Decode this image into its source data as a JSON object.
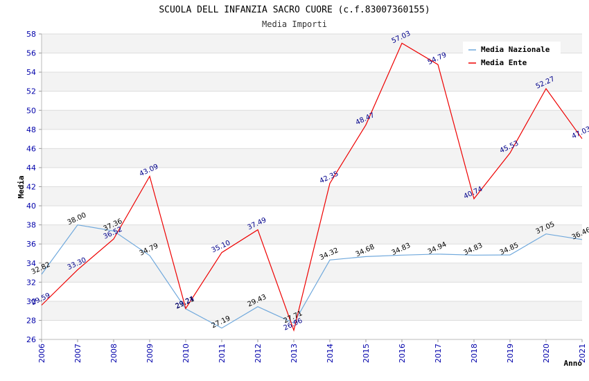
{
  "chart_data": {
    "type": "line",
    "title": "SCUOLA DELL INFANZIA SACRO CUORE (c.f.83007360155)",
    "subtitle": "Media Importi",
    "xlabel": "Anno",
    "ylabel": "Media",
    "ylim": [
      26,
      58
    ],
    "y_ticks": [
      "26",
      "28",
      "30",
      "32",
      "34",
      "36",
      "38",
      "40",
      "42",
      "44",
      "46",
      "48",
      "50",
      "52",
      "54",
      "56",
      "58"
    ],
    "categories": [
      "2006",
      "2007",
      "2008",
      "2009",
      "2010",
      "2011",
      "2012",
      "2013",
      "2014",
      "2015",
      "2016",
      "2017",
      "2018",
      "2019",
      "2020",
      "2021"
    ],
    "legend_position": "top-right",
    "series": [
      {
        "name": "Media Nazionale",
        "color": "#6fa8dc",
        "values": [
          32.82,
          38.0,
          37.36,
          34.79,
          29.21,
          27.19,
          29.43,
          27.71,
          34.32,
          34.68,
          34.83,
          34.94,
          34.83,
          34.85,
          37.05,
          36.46
        ],
        "labels": [
          "32.82",
          "38.00",
          "37.36",
          "34.79",
          "29.21",
          "27.19",
          "29.43",
          "27.71",
          "34.32",
          "34.68",
          "34.83",
          "34.94",
          "34.83",
          "34.85",
          "37.05",
          "36.46"
        ]
      },
      {
        "name": "Media Ente",
        "color": "#ee0000",
        "values": [
          29.59,
          33.3,
          36.52,
          43.09,
          29.24,
          35.1,
          37.49,
          26.96,
          42.35,
          48.47,
          57.03,
          54.79,
          40.74,
          45.53,
          52.27,
          47.03
        ],
        "labels": [
          "29.59",
          "33.30",
          "36.52",
          "43.09",
          "29.24",
          "35.10",
          "37.49",
          "26.96",
          "42.35",
          "48.47",
          "57.03",
          "54.79",
          "40.74",
          "45.53",
          "52.27",
          "47.03"
        ]
      }
    ]
  }
}
